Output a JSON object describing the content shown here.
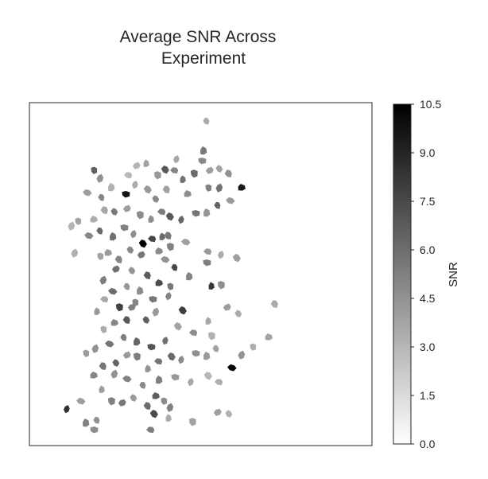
{
  "chart_data": {
    "type": "heatmap",
    "title": [
      "Average SNR Across",
      "Experiment"
    ],
    "colorbar": {
      "label": "SNR",
      "range": [
        0.0,
        10.5
      ],
      "ticks": [
        "0.0",
        "1.5",
        "3.0",
        "4.5",
        "6.0",
        "7.5",
        "9.0",
        "10.5"
      ],
      "colormap": "gray_r"
    },
    "grid": false,
    "rois": [
      [
        260,
        152,
        3.5
      ],
      [
        256,
        190,
        5.5
      ],
      [
        254,
        202,
        4.8
      ],
      [
        222,
        200,
        3.6
      ],
      [
        208,
        213,
        6.8
      ],
      [
        220,
        214,
        5.0
      ],
      [
        230,
        226,
        5.8
      ],
      [
        244,
        218,
        6.2
      ],
      [
        264,
        214,
        4.0
      ],
      [
        276,
        212,
        3.8
      ],
      [
        288,
        218,
        4.5
      ],
      [
        304,
        236,
        9.5
      ],
      [
        118,
        214,
        6.5
      ],
      [
        126,
        224,
        4.5
      ],
      [
        110,
        242,
        4.0
      ],
      [
        128,
        248,
        5.0
      ],
      [
        140,
        236,
        3.2
      ],
      [
        158,
        244,
        9.8
      ],
      [
        170,
        232,
        3.5
      ],
      [
        186,
        238,
        4.2
      ],
      [
        162,
        220,
        3.0
      ],
      [
        184,
        206,
        3.8
      ],
      [
        198,
        220,
        4.2
      ],
      [
        172,
        208,
        3.0
      ],
      [
        196,
        250,
        4.8
      ],
      [
        210,
        238,
        3.9
      ],
      [
        236,
        244,
        4.6
      ],
      [
        262,
        236,
        5.2
      ],
      [
        276,
        236,
        5.8
      ],
      [
        290,
        252,
        4.1
      ],
      [
        274,
        258,
        6.5
      ],
      [
        260,
        268,
        4.4
      ],
      [
        246,
        268,
        5.7
      ],
      [
        228,
        276,
        6.3
      ],
      [
        214,
        272,
        6.9
      ],
      [
        204,
        266,
        5.4
      ],
      [
        190,
        276,
        4.6
      ],
      [
        176,
        270,
        4.8
      ],
      [
        160,
        262,
        4.0
      ],
      [
        144,
        266,
        5.5
      ],
      [
        132,
        264,
        3.7
      ],
      [
        118,
        276,
        3.4
      ],
      [
        98,
        278,
        3.8
      ],
      [
        90,
        284,
        3.1
      ],
      [
        112,
        296,
        4.9
      ],
      [
        126,
        290,
        6.2
      ],
      [
        142,
        298,
        5.9
      ],
      [
        156,
        286,
        5.2
      ],
      [
        168,
        294,
        4.7
      ],
      [
        180,
        306,
        10.4
      ],
      [
        192,
        300,
        7.6
      ],
      [
        204,
        298,
        6.1
      ],
      [
        214,
        310,
        5.2
      ],
      [
        178,
        320,
        5.5
      ],
      [
        164,
        314,
        4.9
      ],
      [
        150,
        326,
        5.0
      ],
      [
        136,
        318,
        4.1
      ],
      [
        126,
        322,
        3.8
      ],
      [
        94,
        318,
        3.3
      ],
      [
        208,
        326,
        4.4
      ],
      [
        220,
        336,
        7.5
      ],
      [
        238,
        348,
        5.1
      ],
      [
        260,
        330,
        5.3
      ],
      [
        278,
        320,
        3.5
      ],
      [
        298,
        324,
        3.9
      ],
      [
        262,
        316,
        4.2
      ],
      [
        266,
        360,
        8.2
      ],
      [
        278,
        358,
        4.6
      ],
      [
        146,
        338,
        5.9
      ],
      [
        166,
        340,
        4.4
      ],
      [
        186,
        346,
        6.7
      ],
      [
        200,
        356,
        7.4
      ],
      [
        214,
        360,
        5.5
      ],
      [
        130,
        352,
        5.3
      ],
      [
        142,
        366,
        6.0
      ],
      [
        160,
        360,
        4.3
      ],
      [
        176,
        366,
        4.7
      ],
      [
        192,
        376,
        5.6
      ],
      [
        212,
        372,
        5.0
      ],
      [
        230,
        390,
        8.0
      ],
      [
        132,
        376,
        3.6
      ],
      [
        122,
        392,
        4.2
      ],
      [
        150,
        386,
        7.8
      ],
      [
        166,
        386,
        5.2
      ],
      [
        184,
        402,
        6.6
      ],
      [
        160,
        402,
        6.9
      ],
      [
        144,
        406,
        4.9
      ],
      [
        130,
        414,
        3.4
      ],
      [
        120,
        438,
        4.5
      ],
      [
        138,
        432,
        5.7
      ],
      [
        156,
        424,
        5.3
      ],
      [
        172,
        430,
        6.3
      ],
      [
        190,
        436,
        7.0
      ],
      [
        208,
        428,
        5.9
      ],
      [
        224,
        410,
        3.8
      ],
      [
        244,
        418,
        4.7
      ],
      [
        262,
        404,
        3.6
      ],
      [
        266,
        422,
        3.2
      ],
      [
        286,
        386,
        4.0
      ],
      [
        300,
        394,
        3.4
      ],
      [
        346,
        382,
        3.5
      ],
      [
        338,
        424,
        3.7
      ],
      [
        318,
        436,
        3.3
      ],
      [
        304,
        446,
        4.4
      ],
      [
        292,
        462,
        10.2
      ],
      [
        272,
        438,
        3.8
      ],
      [
        260,
        448,
        4.1
      ],
      [
        246,
        444,
        4.6
      ],
      [
        228,
        452,
        4.8
      ],
      [
        216,
        448,
        6.2
      ],
      [
        200,
        454,
        5.6
      ],
      [
        186,
        464,
        4.4
      ],
      [
        172,
        448,
        5.3
      ],
      [
        160,
        446,
        4.2
      ],
      [
        146,
        456,
        6.4
      ],
      [
        130,
        460,
        5.6
      ],
      [
        118,
        472,
        5.0
      ],
      [
        108,
        444,
        4.1
      ],
      [
        144,
        470,
        4.5
      ],
      [
        160,
        476,
        5.1
      ],
      [
        180,
        484,
        4.9
      ],
      [
        200,
        478,
        5.3
      ],
      [
        220,
        474,
        4.2
      ],
      [
        240,
        480,
        3.6
      ],
      [
        262,
        472,
        3.0
      ],
      [
        276,
        480,
        3.3
      ],
      [
        128,
        490,
        3.9
      ],
      [
        140,
        504,
        5.2
      ],
      [
        154,
        506,
        5.6
      ],
      [
        168,
        500,
        4.1
      ],
      [
        186,
        510,
        6.0
      ],
      [
        196,
        498,
        6.6
      ],
      [
        206,
        504,
        4.7
      ],
      [
        214,
        512,
        5.2
      ],
      [
        102,
        504,
        4.0
      ],
      [
        122,
        528,
        4.5
      ],
      [
        108,
        532,
        5.1
      ],
      [
        118,
        540,
        4.7
      ],
      [
        84,
        514,
        8.5
      ],
      [
        194,
        520,
        7.4
      ],
      [
        190,
        540,
        5.3
      ],
      [
        212,
        526,
        3.4
      ],
      [
        242,
        530,
        3.8
      ],
      [
        274,
        518,
        4.0
      ],
      [
        288,
        520,
        3.2
      ],
      [
        212,
        296,
        5.5
      ],
      [
        200,
        316,
        4.8
      ],
      [
        170,
        380,
        5.0
      ],
      [
        196,
        392,
        4.2
      ],
      [
        234,
        304,
        4.0
      ]
    ]
  }
}
